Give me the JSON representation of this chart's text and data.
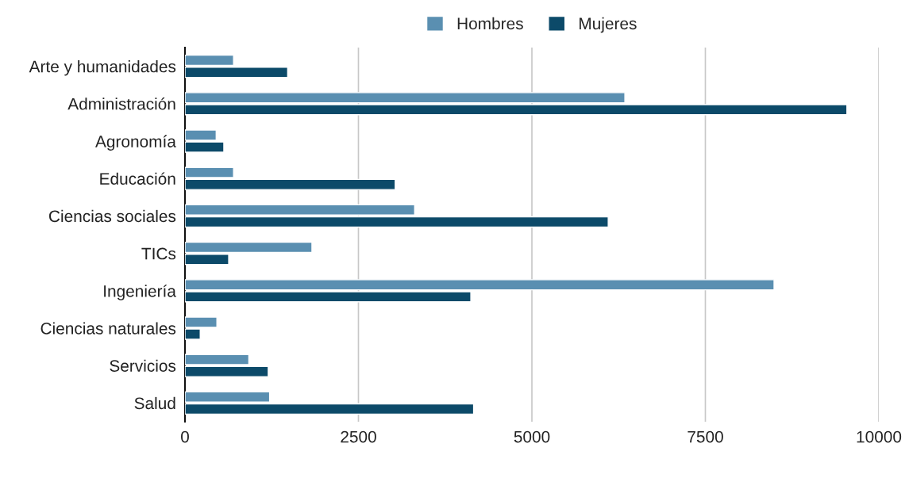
{
  "chart_data": {
    "type": "bar",
    "orientation": "horizontal",
    "categories": [
      "Arte y humanidades",
      "Administración",
      "Agronomía",
      "Educación",
      "Ciencias sociales",
      "TICs",
      "Ingeniería",
      "Ciencias naturales",
      "Servicios",
      "Salud"
    ],
    "series": [
      {
        "name": "Hombres",
        "color": "#5a8fb1",
        "values": [
          700,
          6340,
          450,
          700,
          3310,
          1830,
          8490,
          460,
          920,
          1220
        ]
      },
      {
        "name": "Mujeres",
        "color": "#0c4a69",
        "values": [
          1480,
          9540,
          560,
          3030,
          6100,
          630,
          4120,
          220,
          1200,
          4160
        ]
      }
    ],
    "xlim": [
      0,
      10000
    ],
    "xticks": [
      0,
      2500,
      5000,
      7500,
      10000
    ],
    "grid": "x",
    "legend": "top"
  }
}
